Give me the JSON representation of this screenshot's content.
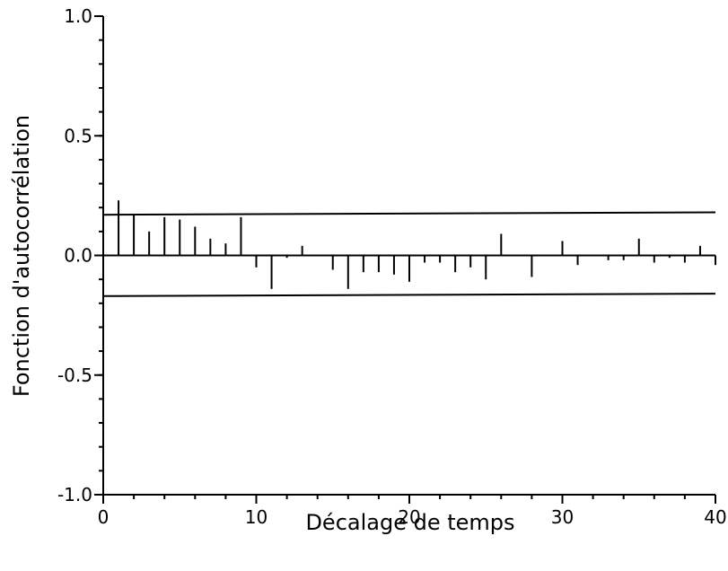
{
  "chart_data": {
    "type": "bar",
    "subtype": "autocorrelation-stem",
    "xlabel": "Décalage de temps",
    "ylabel": "Fonction d'autocorrélation",
    "xlim": [
      0,
      40
    ],
    "ylim": [
      -1.0,
      1.0
    ],
    "x_ticks": [
      0,
      10,
      20,
      30,
      40
    ],
    "x_tick_labels": [
      "0",
      "10",
      "20",
      "30",
      "40"
    ],
    "y_ticks": [
      1.0,
      0.5,
      0.0,
      -0.5,
      -1.0
    ],
    "y_tick_labels": [
      "1.0",
      "0.5",
      "0.0",
      "-0.5",
      "-1.0"
    ],
    "grid": false,
    "legend": "none",
    "series": [
      {
        "x": [
          1,
          2,
          3,
          4,
          5,
          6,
          7,
          8,
          9,
          10,
          11,
          12,
          13,
          14,
          15,
          16,
          17,
          18,
          19,
          20,
          21,
          22,
          23,
          24,
          25,
          26,
          27,
          28,
          29,
          30,
          31,
          32,
          33,
          34,
          35,
          36,
          37,
          38,
          39,
          40
        ],
        "values": [
          0.23,
          0.17,
          0.1,
          0.16,
          0.15,
          0.12,
          0.07,
          0.05,
          0.16,
          -0.05,
          -0.14,
          -0.01,
          0.04,
          0.0,
          -0.06,
          -0.14,
          -0.07,
          -0.07,
          -0.08,
          -0.11,
          -0.03,
          -0.03,
          -0.07,
          -0.05,
          -0.1,
          0.09,
          0.0,
          -0.09,
          0.0,
          0.06,
          -0.04,
          0.0,
          -0.02,
          -0.02,
          0.07,
          -0.03,
          -0.01,
          -0.03,
          0.04,
          -0.04
        ]
      }
    ],
    "confidence_bounds": {
      "upper": [
        0.17,
        0.18
      ],
      "lower": [
        -0.17,
        -0.16
      ]
    }
  }
}
